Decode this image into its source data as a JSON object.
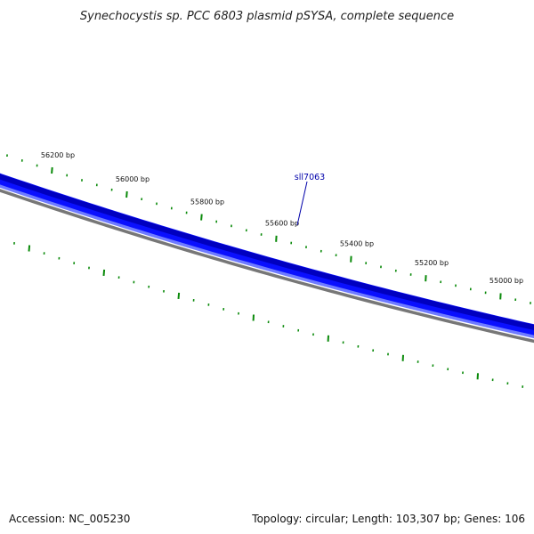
{
  "title": "Synechocystis sp. PCC 6803 plasmid pSYSA, complete sequence",
  "footer": {
    "accession": "Accession: NC_005230",
    "summary": "Topology: circular; Length: 103,307 bp; Genes: 106"
  },
  "gene": {
    "label": "sll7063"
  },
  "colors": {
    "gene_dark": "#0000c0",
    "gene_mid": "#0a10ff",
    "gene_light": "#6f7bff",
    "backbone": "#777777",
    "ticks": "#0a8a0a",
    "gene_label": "#0000aa"
  },
  "scale_labels": [
    {
      "bp": 56200,
      "text": "56200 bp"
    },
    {
      "bp": 56000,
      "text": "56000 bp"
    },
    {
      "bp": 55800,
      "text": "55800 bp"
    },
    {
      "bp": 55600,
      "text": "55600 bp"
    },
    {
      "bp": 55400,
      "text": "55400 bp"
    },
    {
      "bp": 55200,
      "text": "55200 bp"
    },
    {
      "bp": 55000,
      "text": "55000 bp"
    }
  ]
}
